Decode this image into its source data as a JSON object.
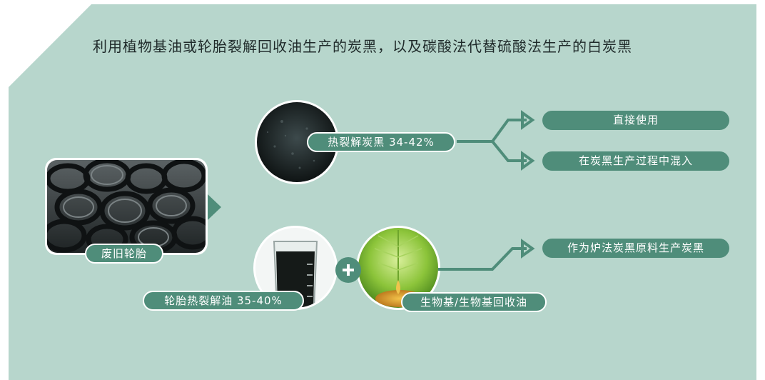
{
  "title": "利用植物基油或轮胎裂解回收油生产的炭黑，以及碳酸法代替硫酸法生产的白炭黑",
  "nodes": {
    "waste_tires": "废旧轮胎",
    "carbon_black": "热裂解炭黑 34-42%",
    "pyrolysis_oil": "轮胎热裂解油 35-40%",
    "bio_oil": "生物基/生物基回收油"
  },
  "outputs": {
    "direct_use": "直接使用",
    "mix_in": "在炭黑生产过程中混入",
    "furnace_feedstock": "作为炉法炭黑原料生产炭黑"
  },
  "colors": {
    "background_panel": "#b7d6cc",
    "accent": "#4f8d7a",
    "text_dark": "#1f2a2a"
  }
}
